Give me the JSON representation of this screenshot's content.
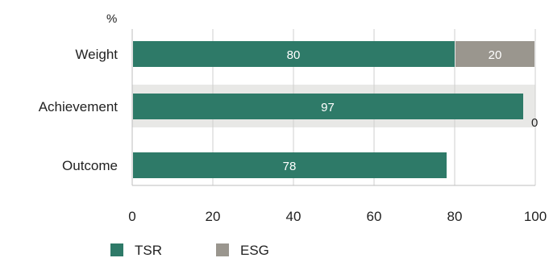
{
  "chart_data": {
    "type": "bar",
    "orientation": "horizontal",
    "stacked": true,
    "unit_label": "%",
    "categories": [
      "Weight",
      "Achievement",
      "Outcome"
    ],
    "xlim": [
      0,
      100
    ],
    "xticks": [
      "0",
      "20",
      "40",
      "60",
      "80",
      "100"
    ],
    "grid": true,
    "legend_position": "bottom-left",
    "series": [
      {
        "name": "TSR",
        "color": "#2e7a68",
        "values": [
          80,
          97,
          78
        ],
        "labels": [
          "80",
          "97",
          "78"
        ]
      },
      {
        "name": "ESG",
        "color": "#9a968e",
        "values": [
          20,
          0,
          0
        ],
        "labels": [
          "20",
          "0",
          ""
        ]
      }
    ],
    "background_bands": [
      {
        "category": "Achievement",
        "from": 0,
        "to": 100,
        "color": "#e8e8e6"
      }
    ]
  }
}
